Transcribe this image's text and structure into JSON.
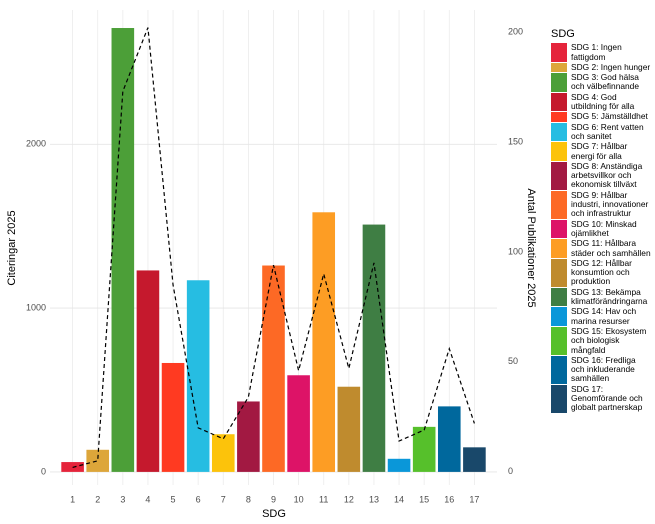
{
  "chart_data": {
    "type": "bar",
    "x_label": "SDG",
    "y_label": "Citeringar 2025",
    "y2_label": "Antal Publikationer 2025",
    "categories": [
      "1",
      "2",
      "3",
      "4",
      "5",
      "6",
      "7",
      "8",
      "9",
      "10",
      "11",
      "12",
      "13",
      "14",
      "15",
      "16",
      "17"
    ],
    "series": [
      {
        "type": "bar",
        "values": [
          60,
          135,
          2710,
          1230,
          665,
          1170,
          230,
          430,
          1260,
          590,
          1585,
          520,
          1510,
          80,
          275,
          400,
          150
        ],
        "colors": [
          "#E5243B",
          "#DDA63A",
          "#4C9F38",
          "#C5192D",
          "#FF3A21",
          "#26BDE2",
          "#FCC30B",
          "#A21942",
          "#FD6925",
          "#DD1367",
          "#FD9D24",
          "#BF8B2E",
          "#3F7E44",
          "#0A97D9",
          "#56C02B",
          "#00689D",
          "#19486A"
        ]
      },
      {
        "type": "line",
        "axis": "y2",
        "color": "#000000",
        "linestyle": "dashed",
        "values": [
          2,
          5,
          173,
          202,
          85,
          20,
          15,
          34,
          94,
          46,
          90,
          47,
          95,
          14,
          19,
          56,
          22
        ]
      }
    ],
    "ylim": [
      -80,
      2820
    ],
    "yticks": [
      0,
      1000,
      2000
    ],
    "y2lim": [
      -6,
      210
    ],
    "y2ticks": [
      0,
      50,
      100,
      150,
      200
    ],
    "grid": true,
    "legend": {
      "title": "SDG",
      "position": "right",
      "labels": [
        "SDG 1: Ingen fattigdom",
        "SDG 2: Ingen hunger",
        "SDG 3: God hälsa och välbefinnande",
        "SDG 4: God utbildning för alla",
        "SDG 5: Jämställdhet",
        "SDG 6: Rent vatten och sanitet",
        "SDG 7: Hållbar energi för alla",
        "SDG 8: Anständiga arbetsvillkor och ekonomisk tillväxt",
        "SDG 9: Hållbar industri, innovationer och infrastruktur",
        "SDG 10: Minskad ojämlikhet",
        "SDG 11: Hållbara städer och samhällen",
        "SDG 12: Hållbar konsumtion och produktion",
        "SDG 13: Bekämpa klimatförändringarna",
        "SDG 14: Hav och marina resurser",
        "SDG 15: Ekosystem och biologisk mångfald",
        "SDG 16: Fredliga och inkluderande samhällen",
        "SDG 17: Genomförande och globalt partnerskap"
      ]
    }
  }
}
